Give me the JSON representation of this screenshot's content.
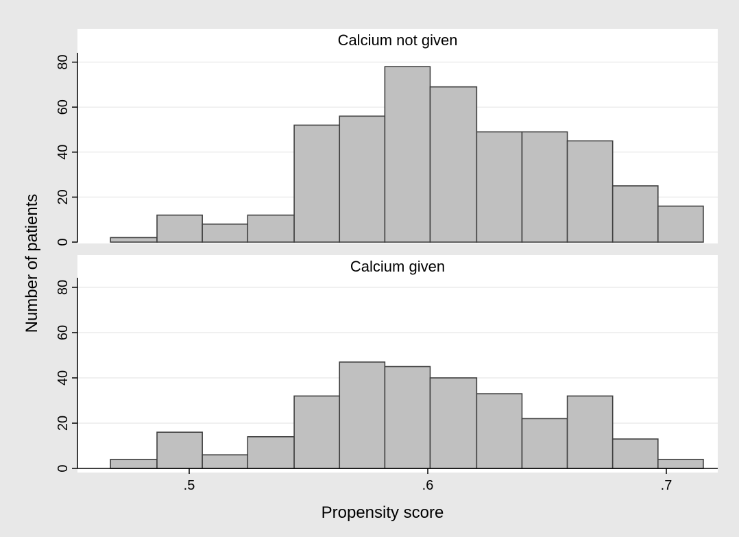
{
  "chart_data": {
    "type": "bar",
    "xlabel": "Propensity score",
    "ylabel": "Number of patients",
    "bin_edges": [
      0.467,
      0.4865,
      0.5055,
      0.5245,
      0.544,
      0.563,
      0.582,
      0.601,
      0.6205,
      0.6395,
      0.6585,
      0.6775,
      0.6965,
      0.7155
    ],
    "xlim": [
      0.45,
      0.72
    ],
    "ylim": [
      0,
      84
    ],
    "xticks": [
      0.5,
      0.6,
      0.7
    ],
    "xtick_labels": [
      ".5",
      ".6",
      ".7"
    ],
    "yticks": [
      0,
      20,
      40,
      60,
      80
    ],
    "ytick_labels": [
      "0",
      "20",
      "40",
      "60",
      "80"
    ],
    "grid": true,
    "colors": {
      "bar_fill": "#c0c0c0",
      "bar_edge": "#404040",
      "panel_bg": "#ffffff",
      "outer_bg": "#e8e8e8",
      "grid": "#ececec"
    },
    "panels": [
      {
        "title": "Calcium not given",
        "values": [
          2,
          12,
          8,
          12,
          52,
          56,
          78,
          69,
          49,
          49,
          45,
          25,
          16
        ]
      },
      {
        "title": "Calcium given",
        "values": [
          4,
          16,
          6,
          14,
          32,
          47,
          45,
          40,
          33,
          22,
          32,
          13,
          4
        ]
      }
    ]
  }
}
